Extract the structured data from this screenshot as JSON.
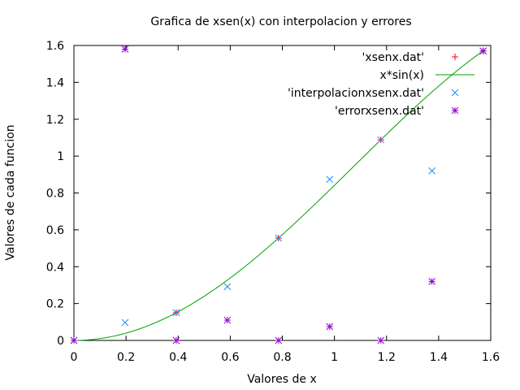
{
  "chart_data": {
    "type": "scatter",
    "title": "Grafica de xsen(x) con interpolacion y errores",
    "xlabel": "Valores de x",
    "ylabel": "Valores de cada funcion",
    "xlim": [
      0,
      1.6
    ],
    "ylim": [
      0,
      1.6
    ],
    "x_ticks": [
      "0",
      "0.2",
      "0.4",
      "0.6",
      "0.8",
      "1",
      "1.2",
      "1.4",
      "1.6"
    ],
    "y_ticks": [
      "0",
      "0.2",
      "0.4",
      "0.6",
      "0.8",
      "1",
      "1.2",
      "1.4",
      "1.6"
    ],
    "grid": false,
    "legend_position": "top-right",
    "series": [
      {
        "name": "'xsenx.dat'",
        "style": "points-plus",
        "color": "#ff0000",
        "points": [
          [
            0,
            0
          ],
          [
            0.3927,
            0.1503
          ],
          [
            0.7854,
            0.5554
          ],
          [
            1.1781,
            1.0884
          ],
          [
            1.5708,
            1.5708
          ]
        ]
      },
      {
        "name": "x*sin(x)",
        "style": "line",
        "color": "#00a000",
        "function": "x*sin(x)",
        "domain": [
          0,
          1.5708
        ]
      },
      {
        "name": "'interpolacionxsenx.dat'",
        "style": "points-x",
        "color": "#1e90ff",
        "points": [
          [
            0,
            0
          ],
          [
            0.1963,
            0.097
          ],
          [
            0.3927,
            0.1503
          ],
          [
            0.589,
            0.292
          ],
          [
            0.7854,
            0.5554
          ],
          [
            0.9817,
            0.874
          ],
          [
            1.1781,
            1.0884
          ],
          [
            1.3744,
            0.92
          ],
          [
            1.5708,
            1.5708
          ]
        ]
      },
      {
        "name": "'errorxsenx.dat'",
        "style": "points-star",
        "color": "#9400d3",
        "points": [
          [
            0,
            0
          ],
          [
            0.1963,
            1.58
          ],
          [
            0.3927,
            0
          ],
          [
            0.589,
            0.11
          ],
          [
            0.7854,
            0
          ],
          [
            0.9817,
            0.075
          ],
          [
            1.1781,
            0
          ],
          [
            1.3744,
            0.32
          ],
          [
            1.5708,
            1.57
          ]
        ]
      }
    ]
  }
}
